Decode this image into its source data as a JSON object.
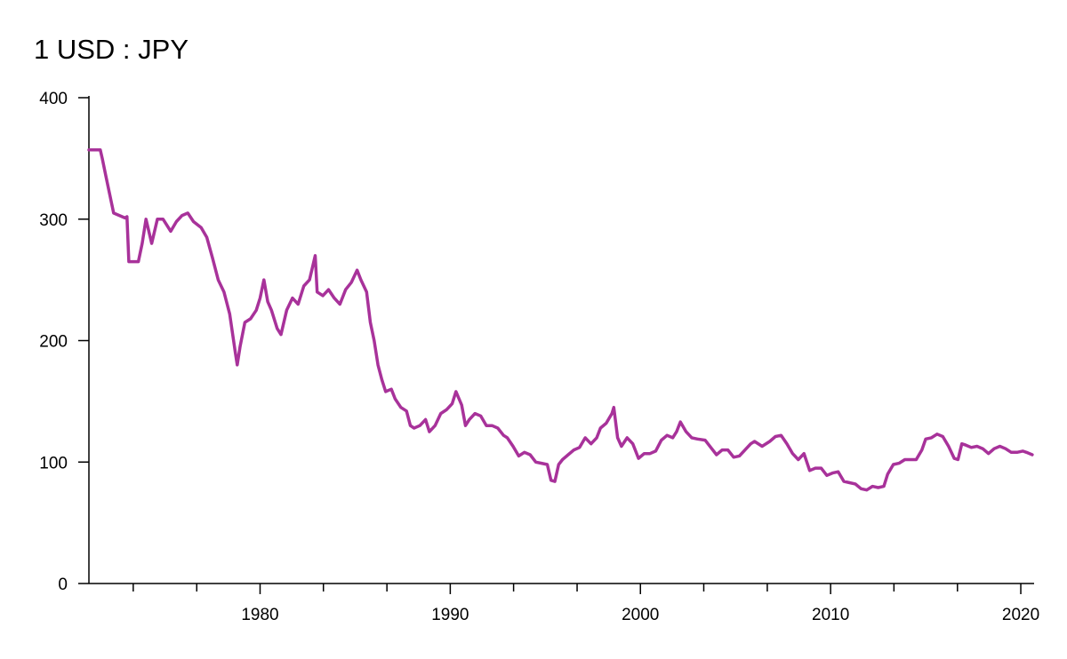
{
  "chart_data": {
    "type": "line",
    "title": "1 USD : JPY",
    "color": "#a8329a",
    "x": [
      1971.0,
      1971.6,
      1971.7,
      1971.9,
      1972.1,
      1972.3,
      1972.6,
      1972.9,
      1973.0,
      1973.1,
      1973.3,
      1973.6,
      1973.8,
      1974.0,
      1974.3,
      1974.6,
      1974.9,
      1975.3,
      1975.6,
      1975.9,
      1976.2,
      1976.5,
      1976.9,
      1977.2,
      1977.5,
      1977.8,
      1978.1,
      1978.4,
      1978.7,
      1978.8,
      1978.95,
      1979.2,
      1979.5,
      1979.8,
      1980.0,
      1980.2,
      1980.4,
      1980.6,
      1980.9,
      1981.1,
      1981.4,
      1981.7,
      1982.0,
      1982.3,
      1982.6,
      1982.9,
      1983.0,
      1983.3,
      1983.6,
      1983.9,
      1984.2,
      1984.5,
      1984.8,
      1985.1,
      1985.3,
      1985.6,
      1985.8,
      1986.0,
      1986.2,
      1986.4,
      1986.6,
      1986.9,
      1987.1,
      1987.4,
      1987.7,
      1987.9,
      1988.1,
      1988.4,
      1988.7,
      1988.9,
      1989.2,
      1989.5,
      1989.8,
      1990.1,
      1990.3,
      1990.6,
      1990.8,
      1991.0,
      1991.3,
      1991.6,
      1991.9,
      1992.2,
      1992.5,
      1992.8,
      1993.0,
      1993.3,
      1993.6,
      1993.9,
      1994.2,
      1994.5,
      1994.8,
      1995.1,
      1995.3,
      1995.5,
      1995.7,
      1995.9,
      1996.2,
      1996.5,
      1996.8,
      1997.1,
      1997.4,
      1997.7,
      1997.9,
      1998.2,
      1998.5,
      1998.6,
      1998.8,
      1999.0,
      1999.3,
      1999.6,
      1999.9,
      2000.2,
      2000.5,
      2000.8,
      2001.1,
      2001.4,
      2001.7,
      2001.9,
      2002.1,
      2002.4,
      2002.7,
      2003.0,
      2003.4,
      2003.7,
      2004.0,
      2004.3,
      2004.6,
      2004.9,
      2005.2,
      2005.5,
      2005.8,
      2006.0,
      2006.4,
      2006.8,
      2007.1,
      2007.4,
      2007.7,
      2008.0,
      2008.3,
      2008.6,
      2008.9,
      2009.2,
      2009.5,
      2009.8,
      2010.1,
      2010.4,
      2010.7,
      2011.0,
      2011.3,
      2011.6,
      2011.9,
      2012.2,
      2012.5,
      2012.8,
      2013.0,
      2013.3,
      2013.6,
      2013.9,
      2014.2,
      2014.5,
      2014.8,
      2015.0,
      2015.3,
      2015.6,
      2015.9,
      2016.2,
      2016.5,
      2016.7,
      2016.9,
      2017.1,
      2017.4,
      2017.7,
      2018.0,
      2018.3,
      2018.6,
      2018.9,
      2019.2,
      2019.5,
      2019.8,
      2020.1,
      2020.3,
      2020.6
    ],
    "values": [
      357,
      357,
      350,
      335,
      320,
      305,
      303,
      301,
      302,
      265,
      265,
      265,
      280,
      300,
      280,
      300,
      300,
      290,
      298,
      303,
      305,
      298,
      293,
      285,
      268,
      250,
      240,
      222,
      190,
      180,
      195,
      215,
      218,
      225,
      235,
      250,
      232,
      225,
      210,
      205,
      225,
      235,
      230,
      245,
      250,
      270,
      240,
      237,
      242,
      235,
      230,
      242,
      248,
      258,
      250,
      240,
      215,
      200,
      180,
      168,
      158,
      160,
      152,
      145,
      142,
      130,
      128,
      130,
      135,
      125,
      130,
      140,
      143,
      148,
      158,
      147,
      130,
      135,
      140,
      138,
      130,
      130,
      128,
      122,
      120,
      113,
      105,
      108,
      106,
      100,
      99,
      98,
      85,
      84,
      98,
      102,
      106,
      110,
      112,
      120,
      115,
      120,
      128,
      132,
      140,
      145,
      120,
      113,
      120,
      115,
      103,
      107,
      107,
      109,
      118,
      122,
      120,
      125,
      133,
      125,
      120,
      119,
      118,
      112,
      106,
      110,
      110,
      104,
      105,
      110,
      115,
      117,
      113,
      117,
      121,
      122,
      115,
      107,
      102,
      107,
      93,
      95,
      95,
      89,
      91,
      92,
      84,
      83,
      82,
      78,
      77,
      80,
      79,
      80,
      90,
      98,
      99,
      102,
      102,
      102,
      110,
      119,
      120,
      123,
      121,
      113,
      103,
      102,
      115,
      114,
      112,
      113,
      111,
      107,
      111,
      113,
      111,
      108,
      108,
      109,
      108,
      106
    ],
    "xlim": [
      1971,
      2020.7
    ],
    "xticks": [
      1980,
      1990,
      2000,
      2010,
      2020
    ],
    "xminor_ticks": [
      1973.33,
      1976.67,
      1983.33,
      1986.67,
      1993.33,
      1996.67,
      2003.33,
      2006.67,
      2013.33,
      2016.67
    ],
    "ylim": [
      0,
      400
    ],
    "yticks": [
      0,
      100,
      200,
      300,
      400
    ]
  }
}
